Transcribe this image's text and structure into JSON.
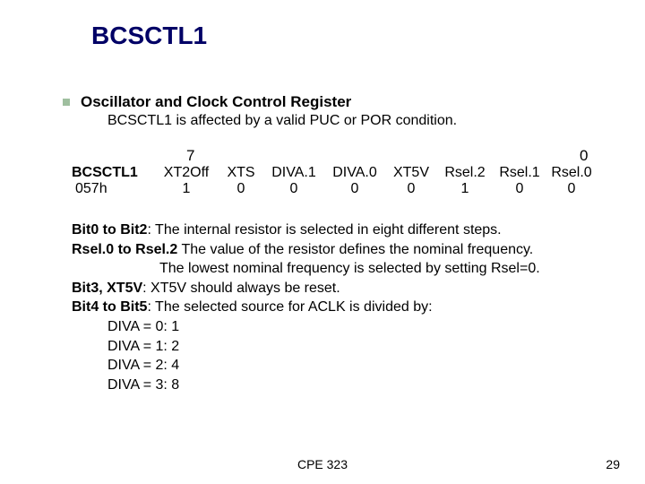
{
  "title": "BCSCTL1",
  "heading": "Oscillator and Clock Control Register",
  "subline": "BCSCTL1 is affected by a valid PUC or POR condition.",
  "register": {
    "bit_hi_label": "7",
    "bit_lo_label": "0",
    "name": "BCSCTL1",
    "addr": "057h",
    "fields": [
      "XT2Off",
      "XTS",
      "DIVA.1",
      "DIVA.0",
      "XT5V",
      "Rsel.2",
      "Rsel.1",
      "Rsel.0"
    ],
    "reset": [
      "1",
      "0",
      "0",
      "0",
      "0",
      "1",
      "0",
      "0"
    ]
  },
  "desc": {
    "l1a": "Bit0 to Bit2",
    "l1b": ": The internal resistor is selected in eight different steps.",
    "l2a": "Rsel.0 to Rsel.2",
    "l2b": " The value of the resistor defines the nominal frequency.",
    "l3": "The lowest nominal frequency is selected by setting Rsel=0.",
    "l4a": "Bit3, XT5V",
    "l4b": ": XT5V should always be reset.",
    "l5a": "Bit4 to Bit5",
    "l5b": ": The selected source for ACLK is divided by:",
    "d0": "DIVA = 0: 1",
    "d1": "DIVA = 1: 2",
    "d2": "DIVA = 2: 4",
    "d3": "DIVA = 3: 8"
  },
  "footer": {
    "center": "CPE 323",
    "page": "29"
  },
  "colors": {
    "title": "#000066",
    "bullet": "#9fbf9f"
  }
}
